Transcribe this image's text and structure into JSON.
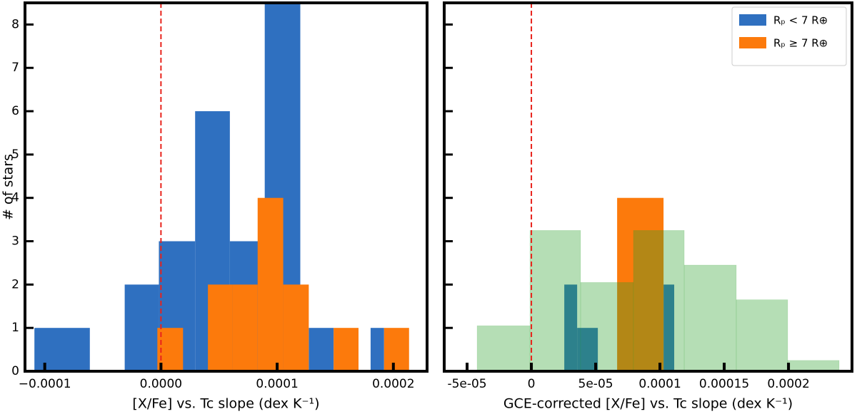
{
  "chart_data": [
    {
      "type": "histogram",
      "xlabel": "[X/Fe] vs. Tc slope (dex K⁻¹)",
      "ylabel": "# of stars",
      "xlim": [
        -0.000117,
        0.000229
      ],
      "ylim": [
        0,
        8.5
      ],
      "xticks": [
        {
          "value": -0.0001,
          "label": "−0.0001"
        },
        {
          "value": 0,
          "label": "0.0000"
        },
        {
          "value": 0.0001,
          "label": "0.0001"
        },
        {
          "value": 0.0002,
          "label": "0.0002"
        }
      ],
      "yticks": [
        0,
        1,
        2,
        3,
        4,
        5,
        6,
        7,
        8
      ],
      "vline": 0,
      "vline_color": "#e8231c",
      "series": [
        {
          "color": "#2f70c0",
          "bins": [
            -0.0001089,
            -6.12e-05,
            -3.12e-05,
            -1.8e-06,
            2.94e-05,
            5.93e-05,
            8.93e-05,
            0.0001199,
            0.0001272,
            0.0001486,
            0.0001804,
            0.000192
          ],
          "values": [
            1,
            0,
            2,
            3,
            6,
            3,
            9,
            0,
            1,
            0,
            1
          ]
        },
        {
          "color": "#fc7a0c",
          "bins": [
            -3.1e-06,
            1.9e-05,
            4.04e-05,
            6.18e-05,
            8.32e-05,
            0.0001052,
            0.0001272,
            0.0001486,
            0.00017,
            0.000192,
            0.0002135
          ],
          "values": [
            1,
            0,
            2,
            2,
            4,
            2,
            0,
            1,
            0,
            1
          ]
        }
      ]
    },
    {
      "type": "histogram",
      "xlabel": "GCE-corrected [X/Fe] vs. Tc slope (dex K⁻¹)",
      "xlim": [
        -6.78e-05,
        0.0002494
      ],
      "ylim": [
        0,
        8.5
      ],
      "xticks": [
        {
          "value": -5e-05,
          "label": "-5e-05"
        },
        0,
        {
          "value": 5e-05,
          "label": "5e-05"
        },
        0.0001,
        0.00015,
        0.0002
      ],
      "yticks": [
        0,
        1,
        2,
        3,
        4,
        5,
        6,
        7,
        8
      ],
      "vline": 0,
      "vline_color": "#e8231c",
      "legend": "upper right",
      "series": [
        {
          "name": "Rₚ < 7 R⊕",
          "color": "#2f70c0",
          "bins": [
            2.56e-05,
            3.56e-05,
            5.17e-05,
            6.67e-05,
            0.0001028,
            0.0001111
          ],
          "values": [
            2,
            1,
            0,
            0,
            2
          ]
        },
        {
          "name": "Rₚ ≥ 7 R⊕",
          "color": "#fc7a0c",
          "bins": [
            6.67e-05,
            0.0001028
          ],
          "values": [
            4
          ]
        },
        {
          "color": "#2ca02c",
          "opacity": 0.35,
          "bins": [
            -4.22e-05,
            -1.1e-06,
            3.83e-05,
            7.94e-05,
            0.0001189,
            0.0001594,
            0.0001994,
            0.0002394
          ],
          "values": [
            1.05,
            3.25,
            2.05,
            3.25,
            2.45,
            1.65,
            0.25
          ]
        }
      ]
    }
  ]
}
